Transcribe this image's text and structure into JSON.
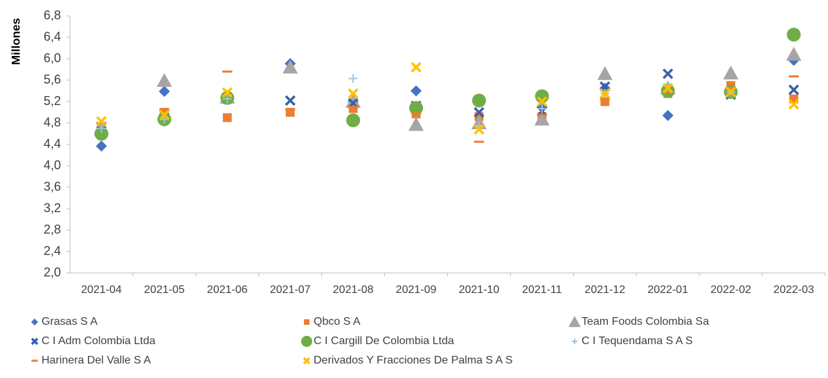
{
  "chart_data": {
    "type": "scatter",
    "y_label": "Millones",
    "categories": [
      "2021-04",
      "2021-05",
      "2021-06",
      "2021-07",
      "2021-08",
      "2021-09",
      "2021-10",
      "2021-11",
      "2021-12",
      "2022-01",
      "2022-02",
      "2022-03"
    ],
    "ylim": [
      2.0,
      6.8
    ],
    "yticks": [
      {
        "value": 2.0,
        "label": "2,0"
      },
      {
        "value": 2.4,
        "label": "2,4"
      },
      {
        "value": 2.8,
        "label": "2,8"
      },
      {
        "value": 3.2,
        "label": "3,2"
      },
      {
        "value": 3.6,
        "label": "3,6"
      },
      {
        "value": 4.0,
        "label": "4,0"
      },
      {
        "value": 4.4,
        "label": "4,4"
      },
      {
        "value": 4.8,
        "label": "4,8"
      },
      {
        "value": 5.2,
        "label": "5,2"
      },
      {
        "value": 5.6,
        "label": "5,6"
      },
      {
        "value": 6.0,
        "label": "6,0"
      },
      {
        "value": 6.4,
        "label": "6,4"
      },
      {
        "value": 6.8,
        "label": "6,8"
      }
    ],
    "grid": false,
    "legend": "bottom",
    "series": [
      {
        "name": "Grasas S A",
        "color": "#4472c4",
        "marker": "diamond",
        "values": [
          4.37,
          5.39,
          5.25,
          5.91,
          5.2,
          5.4,
          4.75,
          5.1,
          5.45,
          4.94,
          5.35,
          5.97
        ]
      },
      {
        "name": "Qbco S A",
        "color": "#ed7d31",
        "marker": "square",
        "values": [
          4.65,
          5.0,
          4.9,
          5.0,
          5.07,
          4.97,
          4.92,
          4.92,
          5.2,
          5.35,
          5.5,
          5.25
        ]
      },
      {
        "name": "Team Foods Colombia Sa",
        "color": "#a5a5a5",
        "marker": "triangle",
        "values": [
          4.7,
          5.59,
          5.28,
          5.84,
          5.2,
          4.77,
          4.8,
          4.87,
          5.72,
          5.45,
          5.73,
          6.08
        ]
      },
      {
        "name": "C I Adm Colombia Ltda",
        "color": "#3a5fad",
        "marker": "x",
        "values": [
          4.65,
          4.9,
          5.25,
          5.22,
          5.17,
          5.12,
          5.0,
          5.02,
          5.48,
          5.72,
          5.33,
          5.42
        ]
      },
      {
        "name": "C I Cargill De Colombia Ltda",
        "color": "#70ad47",
        "marker": "circle",
        "values": [
          4.6,
          4.87,
          5.27,
          null,
          4.85,
          5.08,
          5.22,
          5.3,
          null,
          5.4,
          5.38,
          6.45
        ]
      },
      {
        "name": "C I Tequendama S A S",
        "color": "#9dc3e6",
        "marker": "plus",
        "values": [
          4.7,
          4.87,
          5.25,
          null,
          5.63,
          null,
          4.75,
          5.07,
          5.35,
          5.5,
          5.38,
          null
        ]
      },
      {
        "name": "Harinera Del Valle S A",
        "color": "#ed7d31",
        "marker": "dash",
        "values": [
          4.8,
          5.05,
          5.76,
          5.05,
          5.1,
          4.98,
          4.45,
          4.95,
          5.25,
          5.38,
          5.45,
          5.67
        ]
      },
      {
        "name": "Derivados Y Fracciones De Palma S A S",
        "color": "#ffc000",
        "marker": "x",
        "values": [
          4.83,
          4.95,
          5.37,
          null,
          5.35,
          5.84,
          4.68,
          5.2,
          5.35,
          5.45,
          5.38,
          5.15
        ]
      }
    ]
  }
}
